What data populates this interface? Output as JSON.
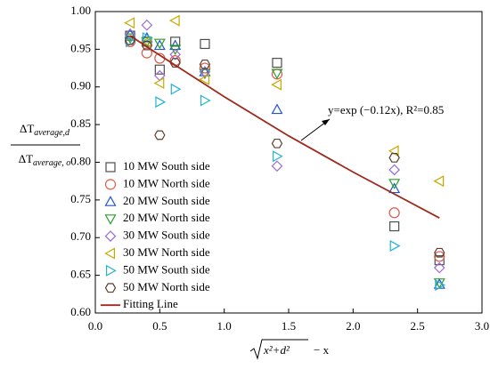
{
  "chart_data": {
    "type": "scatter",
    "x": [
      0.27,
      0.4,
      0.5,
      0.62,
      0.85,
      1.41,
      2.32,
      2.67
    ],
    "series": [
      {
        "name": "10 MW South side",
        "color": "#4d4d4d",
        "marker": "square",
        "values": [
          0.968,
          0.96,
          0.923,
          0.96,
          0.957,
          0.932,
          0.715,
          0.67
        ]
      },
      {
        "name": "10 MW North side",
        "color": "#e0564a",
        "marker": "circle",
        "values": [
          0.96,
          0.945,
          0.938,
          0.935,
          0.925,
          0.917,
          0.733,
          0.675
        ]
      },
      {
        "name": "20 MW South side",
        "color": "#2255cc",
        "marker": "triangle-up",
        "values": [
          0.97,
          0.965,
          0.955,
          0.955,
          0.92,
          0.87,
          0.765,
          0.638
        ]
      },
      {
        "name": "20 MW North side",
        "color": "#2ca02c",
        "marker": "triangle-down",
        "values": [
          0.965,
          0.96,
          0.958,
          0.95,
          0.918,
          0.918,
          0.772,
          0.64
        ]
      },
      {
        "name": "30 MW South side",
        "color": "#9b6bd1",
        "marker": "diamond",
        "values": [
          0.97,
          0.982,
          0.915,
          0.943,
          0.92,
          0.795,
          0.79,
          0.66
        ]
      },
      {
        "name": "30 MW North side",
        "color": "#c8a800",
        "marker": "triangle-left",
        "values": [
          0.985,
          0.96,
          0.905,
          0.988,
          0.91,
          0.903,
          0.815,
          0.775
        ]
      },
      {
        "name": "50 MW South side",
        "color": "#22b3d6",
        "marker": "triangle-right",
        "values": [
          0.96,
          0.965,
          0.88,
          0.897,
          0.882,
          0.808,
          0.689,
          0.637
        ]
      },
      {
        "name": "50 MW North side",
        "color": "#5a4030",
        "marker": "hexagon",
        "values": [
          0.962,
          0.955,
          0.836,
          0.932,
          0.93,
          0.825,
          0.806,
          0.68
        ]
      }
    ],
    "fit": {
      "name": "Fitting Line",
      "color": "#9e2a1c",
      "x": [
        0.27,
        0.5,
        1.0,
        1.5,
        2.0,
        2.67
      ],
      "values": [
        0.968,
        0.942,
        0.887,
        0.835,
        0.787,
        0.726
      ]
    },
    "annotation": "y=exp (−0.12x), R²=0.85",
    "x_label": {
      "radicand": "x²+d²",
      "rest": "− x"
    },
    "y_label": {
      "numerator": "ΔT",
      "numerator_sub": "average,d",
      "denominator": "ΔT",
      "denominator_sub": "average, o"
    },
    "xlim": [
      0,
      3
    ],
    "ylim": [
      0.6,
      1.0
    ],
    "xticks": [
      {
        "value": 0,
        "label": "0.0"
      },
      0.5,
      {
        "value": 1,
        "label": "1.0"
      },
      1.5,
      {
        "value": 2,
        "label": "2.0"
      },
      2.5,
      {
        "value": 3,
        "label": "3.0"
      }
    ],
    "yticks": [
      {
        "value": 0.6,
        "label": "0.60"
      },
      0.65,
      {
        "value": 0.7,
        "label": "0.70"
      },
      0.75,
      {
        "value": 0.8,
        "label": "0.80"
      },
      0.85,
      {
        "value": 0.9,
        "label": "0.90"
      },
      0.95,
      {
        "value": 1.0,
        "label": "1.00"
      }
    ]
  }
}
